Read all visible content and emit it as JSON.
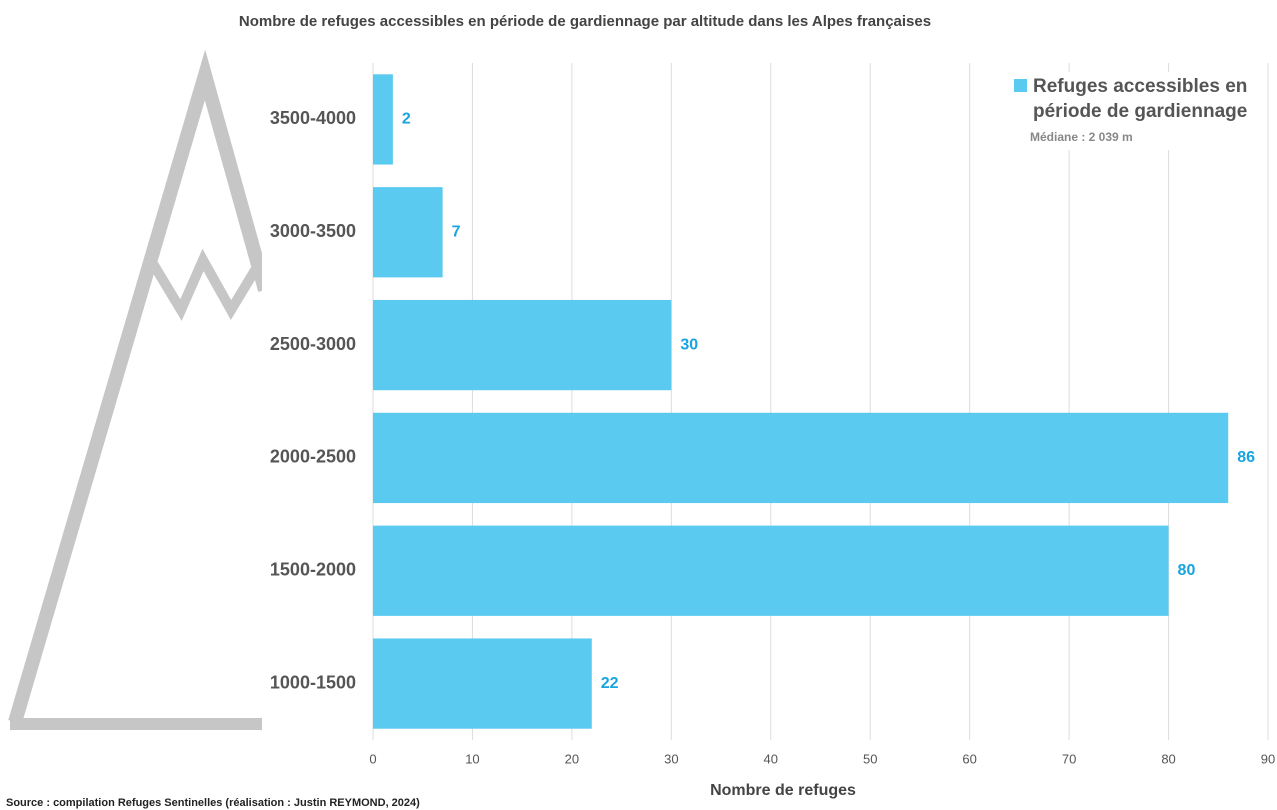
{
  "chart_data": {
    "type": "bar",
    "orientation": "horizontal",
    "title": "Nombre de refuges accessibles en période de gardiennage par altitude dans les Alpes françaises",
    "categories": [
      "3500-4000",
      "3000-3500",
      "2500-3000",
      "2000-2500",
      "1500-2000",
      "1000-1500"
    ],
    "series": [
      {
        "name": "Refuges accessibles en période de gardiennage",
        "color": "#5bcaf0",
        "values": [
          2,
          7,
          30,
          86,
          80,
          22
        ]
      }
    ],
    "value_label_color": "#18a4e0",
    "xlim": [
      0,
      90
    ],
    "xticks": [
      0,
      10,
      20,
      30,
      40,
      50,
      60,
      70,
      80,
      90
    ],
    "grid": true,
    "x_label": "Nombre de refuges",
    "annotation": "Médiane : 2 039 m",
    "source": "Source : compilation Refuges Sentinelles (réalisation : Justin REYMOND, 2024)",
    "legend_position": "top-right"
  }
}
